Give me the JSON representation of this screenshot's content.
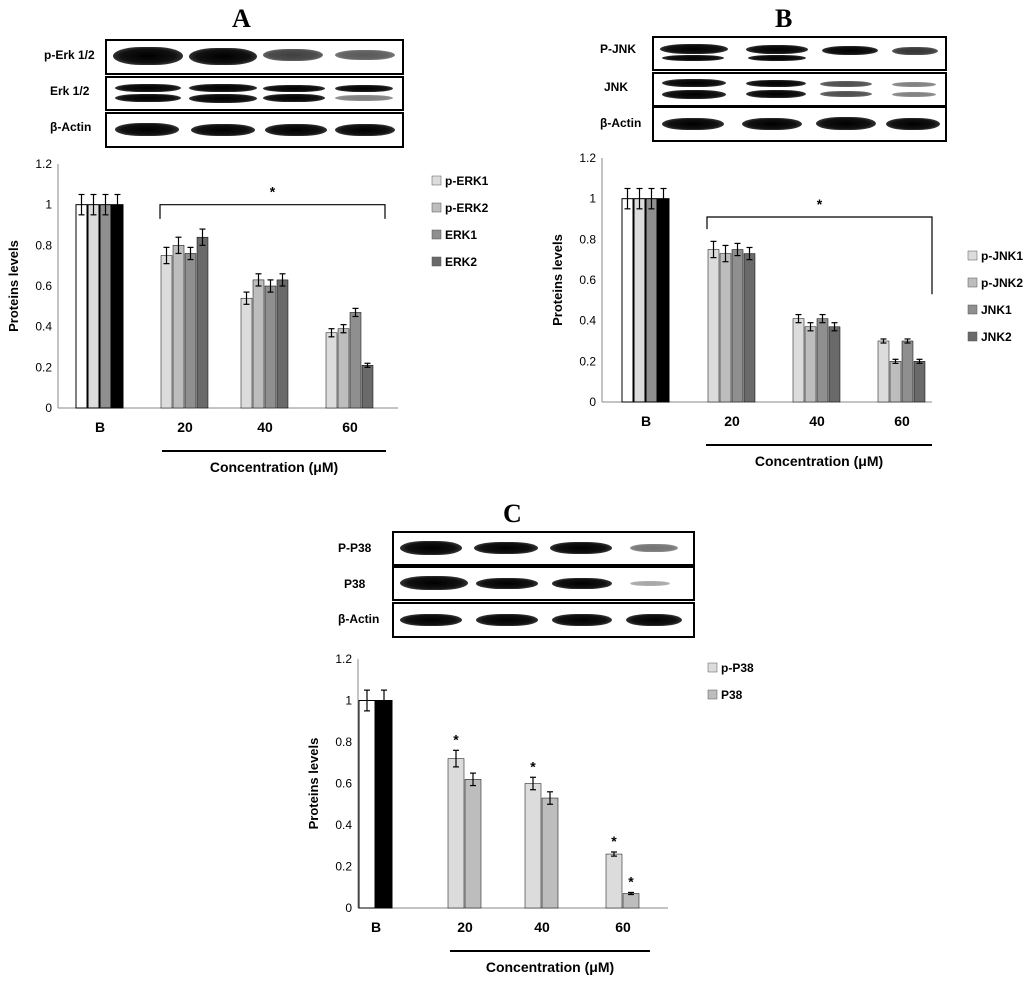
{
  "panels": {
    "A": {
      "letter": "A",
      "blot_labels": [
        "p-Erk 1/2",
        "Erk 1/2",
        "β-Actin"
      ],
      "chart": {
        "type": "bar",
        "ylabel": "Proteins levels",
        "xlabel": "Concentration (μM)",
        "ylim": [
          0,
          1.2
        ],
        "yticks": [
          "0",
          "0.2",
          "0.4",
          "0.6",
          "0.8",
          "1",
          "1.2"
        ],
        "categories": [
          "B",
          "20",
          "40",
          "60"
        ],
        "series": [
          {
            "name": "p-ERK1",
            "values": [
              1.0,
              0.75,
              0.54,
              0.37
            ],
            "errors": [
              0.05,
              0.04,
              0.03,
              0.02
            ]
          },
          {
            "name": "p-ERK2",
            "values": [
              1.0,
              0.8,
              0.63,
              0.39
            ],
            "errors": [
              0.05,
              0.04,
              0.03,
              0.02
            ]
          },
          {
            "name": "ERK1",
            "values": [
              1.0,
              0.76,
              0.6,
              0.47
            ],
            "errors": [
              0.05,
              0.03,
              0.03,
              0.02
            ]
          },
          {
            "name": "ERK2",
            "values": [
              1.0,
              0.84,
              0.63,
              0.21
            ],
            "errors": [
              0.05,
              0.04,
              0.03,
              0.01
            ]
          }
        ],
        "bracket_label": "*"
      }
    },
    "B": {
      "letter": "B",
      "blot_labels": [
        "P-JNK",
        "JNK",
        "β-Actin"
      ],
      "chart": {
        "type": "bar",
        "ylabel": "Proteins levels",
        "xlabel": "Concentration (μM)",
        "ylim": [
          0,
          1.2
        ],
        "yticks": [
          "0",
          "0.2",
          "0.4",
          "0.6",
          "0.8",
          "1",
          "1.2"
        ],
        "categories": [
          "B",
          "20",
          "40",
          "60"
        ],
        "series": [
          {
            "name": "p-JNK1",
            "values": [
              1.0,
              0.75,
              0.41,
              0.3
            ],
            "errors": [
              0.05,
              0.04,
              0.02,
              0.01
            ]
          },
          {
            "name": "p-JNK2",
            "values": [
              1.0,
              0.73,
              0.37,
              0.2
            ],
            "errors": [
              0.05,
              0.04,
              0.02,
              0.01
            ]
          },
          {
            "name": "JNK1",
            "values": [
              1.0,
              0.75,
              0.41,
              0.3
            ],
            "errors": [
              0.05,
              0.03,
              0.02,
              0.01
            ]
          },
          {
            "name": "JNK2",
            "values": [
              1.0,
              0.73,
              0.37,
              0.2
            ],
            "errors": [
              0.05,
              0.03,
              0.02,
              0.01
            ]
          }
        ],
        "bracket_label": "*"
      }
    },
    "C": {
      "letter": "C",
      "blot_labels": [
        "P-P38",
        "P38",
        "β-Actin"
      ],
      "chart": {
        "type": "bar",
        "ylabel": "Proteins levels",
        "xlabel": "Concentration (μM)",
        "ylim": [
          0,
          1.2
        ],
        "yticks": [
          "0",
          "0.2",
          "0.4",
          "0.6",
          "0.8",
          "1",
          "1.2"
        ],
        "categories": [
          "B",
          "20",
          "40",
          "60"
        ],
        "series": [
          {
            "name": "p-P38",
            "values": [
              1.0,
              0.72,
              0.6,
              0.26
            ],
            "errors": [
              0.05,
              0.04,
              0.03,
              0.01
            ]
          },
          {
            "name": "P38",
            "values": [
              1.0,
              0.62,
              0.53,
              0.07
            ],
            "errors": [
              0.05,
              0.03,
              0.03,
              0.005
            ]
          }
        ],
        "significance_marks": [
          "*",
          "*",
          "*",
          "*"
        ]
      }
    }
  },
  "colors": {
    "B_control_white": "#ffffff",
    "B_control_black": "#000000",
    "shade_light": "#dcdcdc",
    "shade_mid": "#bdbdbd",
    "shade_dark": "#8f8f8f",
    "shade_darkest": "#6a6a6a"
  }
}
